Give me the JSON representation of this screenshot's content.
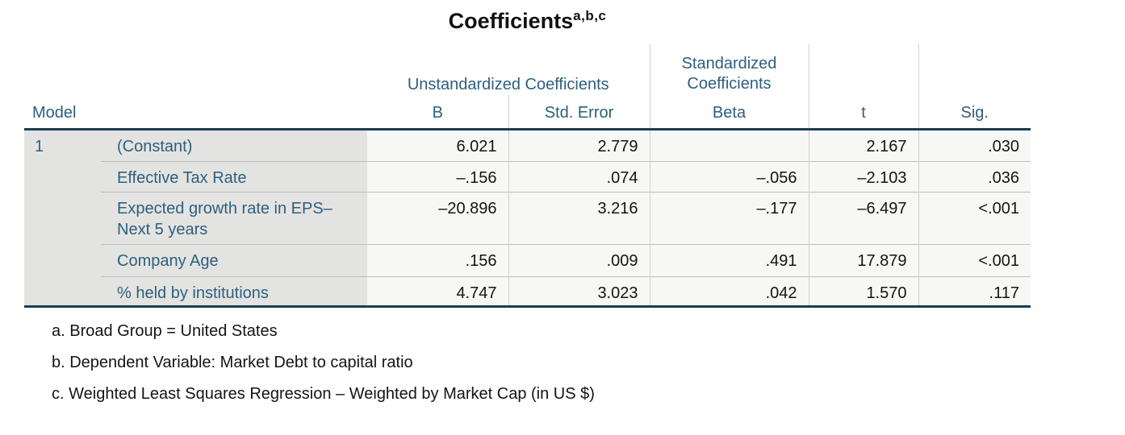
{
  "title": {
    "text": "Coefficients",
    "superscript": "a,b,c"
  },
  "colors": {
    "header_text": "#2e5f7e",
    "data_text": "#141414",
    "label_background": "#e3e3e1",
    "cell_background": "#f7f7f6",
    "thick_rule": "#1b3c4e",
    "light_rule": "#bdbdbb"
  },
  "table": {
    "model_header": "Model",
    "model_number": "1",
    "group_headers": {
      "unstandardized": "Unstandardized Coefficients",
      "standardized": [
        "Standardized",
        "Coefficients"
      ]
    },
    "column_headers": {
      "b": "B",
      "std_error": "Std. Error",
      "beta": "Beta",
      "t": "t",
      "sig": "Sig."
    },
    "rows": [
      {
        "label": "(Constant)",
        "b": "6.021",
        "std_error": "2.779",
        "beta": "",
        "t": "2.167",
        "sig": ".030"
      },
      {
        "label": "Effective Tax Rate",
        "b": "–.156",
        "std_error": ".074",
        "beta": "–.056",
        "t": "–2.103",
        "sig": ".036"
      },
      {
        "label": "Expected growth rate in EPS– Next 5 years",
        "b": "–20.896",
        "std_error": "3.216",
        "beta": "–.177",
        "t": "–6.497",
        "sig": "<.001"
      },
      {
        "label": "Company Age",
        "b": ".156",
        "std_error": ".009",
        "beta": ".491",
        "t": "17.879",
        "sig": "<.001"
      },
      {
        "label": "% held by institutions",
        "b": "4.747",
        "std_error": "3.023",
        "beta": ".042",
        "t": "1.570",
        "sig": ".117"
      }
    ]
  },
  "footnotes": [
    "a. Broad Group = United States",
    "b. Dependent Variable: Market Debt to capital ratio",
    "c. Weighted Least Squares Regression – Weighted by Market Cap (in US $)"
  ]
}
